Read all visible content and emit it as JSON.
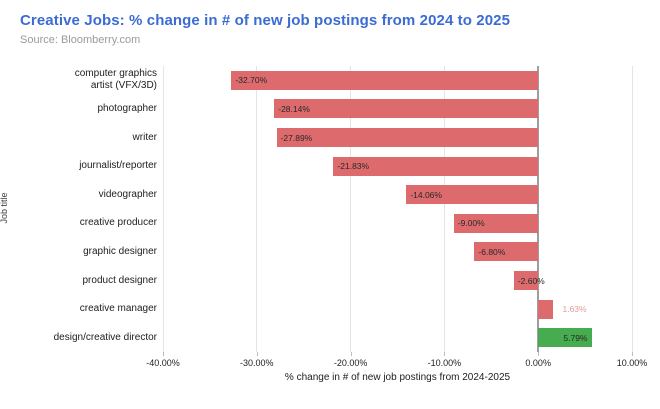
{
  "header": {
    "title": "Creative Jobs: % change in # of new job postings from 2024 to 2025",
    "source": "Source: Bloomberry.com"
  },
  "colors": {
    "title": "#3b6cd3",
    "source_text": "#9a9a9a",
    "negative_bar": "#dd6b6e",
    "positive_bar_green": "#47ab50",
    "positive_bar_red": "#dd6b6e",
    "outside_label_pink": "#ea989a",
    "dark_label": "#282828",
    "gridline": "#e4e4e4",
    "zero_line": "#9e9e9e"
  },
  "chart_data": {
    "type": "bar",
    "orientation": "horizontal",
    "title": "Creative Jobs: % change in # of new job postings from 2024 to 2025",
    "xlabel": "% change in # of new job postings from 2024-2025",
    "ylabel": "Job title",
    "categories": [
      "computer graphics artist (VFX/3D)",
      "photographer",
      "writer",
      "journalist/reporter",
      "videographer",
      "creative producer",
      "graphic designer",
      "product designer",
      "creative manager",
      "design/creative director"
    ],
    "values": [
      -32.7,
      -28.14,
      -27.89,
      -21.83,
      -14.06,
      -9.0,
      -6.8,
      -2.6,
      1.63,
      5.79
    ],
    "labels": [
      "-32.70%",
      "-28.14%",
      "-27.89%",
      "-21.83%",
      "-14.06%",
      "-9.00%",
      "-6.80%",
      "-2.60%",
      "1.63%",
      "5.79%"
    ],
    "bar_colors": [
      "#dd6b6e",
      "#dd6b6e",
      "#dd6b6e",
      "#dd6b6e",
      "#dd6b6e",
      "#dd6b6e",
      "#dd6b6e",
      "#dd6b6e",
      "#dd6b6e",
      "#47ab50"
    ],
    "label_positions": [
      "inside-left",
      "inside-left",
      "inside-left",
      "inside-left",
      "inside-left",
      "inside-left",
      "inside-left",
      "inside-left",
      "outside-right",
      "inside-right"
    ],
    "label_colors": [
      "#282828",
      "#282828",
      "#282828",
      "#282828",
      "#282828",
      "#282828",
      "#282828",
      "#282828",
      "#ea989a",
      "#282828"
    ],
    "xlim": [
      -40,
      10
    ],
    "xticks": [
      "-40.00%",
      "-30.00%",
      "-20.00%",
      "-10.00%",
      "0.00%",
      "10.00%"
    ],
    "xtick_values": [
      -40,
      -30,
      -20,
      -10,
      0,
      10
    ],
    "grid": "vertical",
    "legend": "none"
  }
}
